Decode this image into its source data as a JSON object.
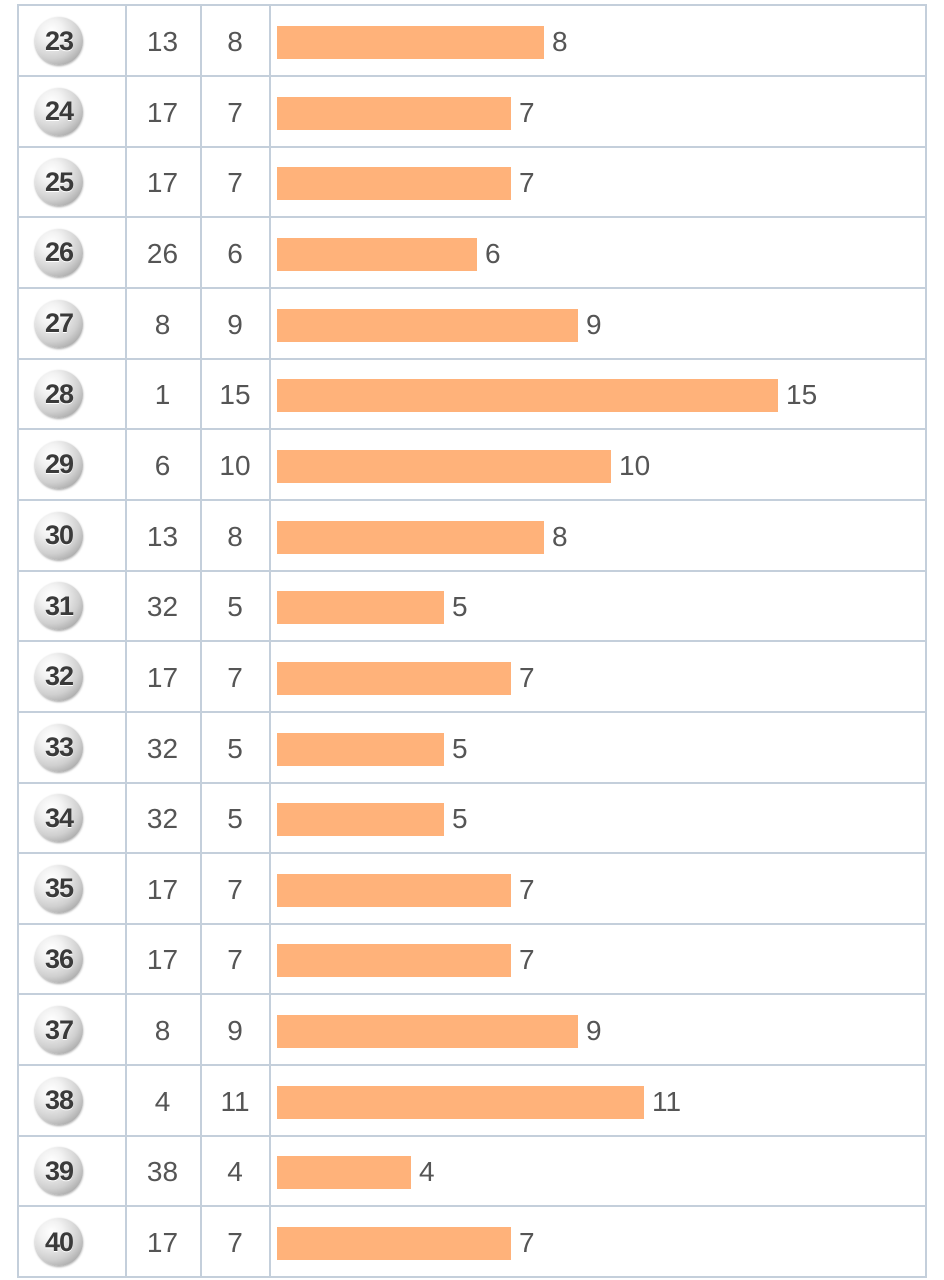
{
  "chart_data": {
    "type": "table",
    "columns": [
      "",
      "",
      "",
      ""
    ],
    "rows": [
      {
        "number": "23",
        "col_a": "13",
        "col_b": "8",
        "bar_value": 8
      },
      {
        "number": "24",
        "col_a": "17",
        "col_b": "7",
        "bar_value": 7
      },
      {
        "number": "25",
        "col_a": "17",
        "col_b": "7",
        "bar_value": 7
      },
      {
        "number": "26",
        "col_a": "26",
        "col_b": "6",
        "bar_value": 6
      },
      {
        "number": "27",
        "col_a": "8",
        "col_b": "9",
        "bar_value": 9
      },
      {
        "number": "28",
        "col_a": "1",
        "col_b": "15",
        "bar_value": 15
      },
      {
        "number": "29",
        "col_a": "6",
        "col_b": "10",
        "bar_value": 10
      },
      {
        "number": "30",
        "col_a": "13",
        "col_b": "8",
        "bar_value": 8
      },
      {
        "number": "31",
        "col_a": "32",
        "col_b": "5",
        "bar_value": 5
      },
      {
        "number": "32",
        "col_a": "17",
        "col_b": "7",
        "bar_value": 7
      },
      {
        "number": "33",
        "col_a": "32",
        "col_b": "5",
        "bar_value": 5
      },
      {
        "number": "34",
        "col_a": "32",
        "col_b": "5",
        "bar_value": 5
      },
      {
        "number": "35",
        "col_a": "17",
        "col_b": "7",
        "bar_value": 7
      },
      {
        "number": "36",
        "col_a": "17",
        "col_b": "7",
        "bar_value": 7
      },
      {
        "number": "37",
        "col_a": "8",
        "col_b": "9",
        "bar_value": 9
      },
      {
        "number": "38",
        "col_a": "4",
        "col_b": "11",
        "bar_value": 11
      },
      {
        "number": "39",
        "col_a": "38",
        "col_b": "4",
        "bar_value": 4
      },
      {
        "number": "40",
        "col_a": "17",
        "col_b": "7",
        "bar_value": 7
      }
    ],
    "bar_color": "#ffb27a",
    "grid_color": "#c4cfdb",
    "ball_icon": "lottery-ball-icon"
  }
}
